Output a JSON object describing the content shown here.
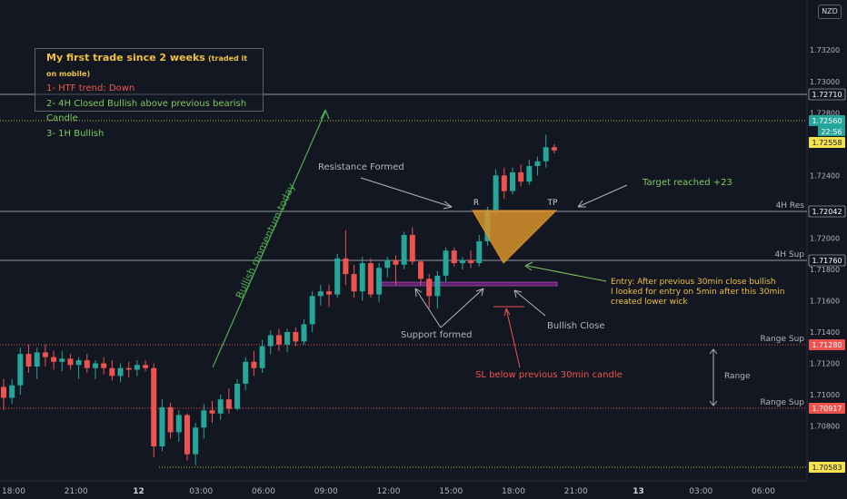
{
  "currency": "NZD",
  "info_box": {
    "title": "My first trade since 2 weeks",
    "subtitle": "(traded it on mobile)",
    "line1": "1- HTF trend: Down",
    "line2": "2- 4H Closed Bullish above previous bearish Candle",
    "line3": "3- 1H Bullish"
  },
  "colors": {
    "background": "#131722",
    "bull": "#26a69a",
    "bear": "#ef5350",
    "text": "#b2b5be",
    "green_note": "#7ecb5e",
    "yellow_note": "#f0c040",
    "red_note": "#f05a4d",
    "triangle": "#d8922a",
    "support_zone": "#9c27b0"
  },
  "chart_data": {
    "type": "candlestick",
    "ylim": [
      1.7045,
      1.7352
    ],
    "x_tick_labels": [
      "18:00",
      "21:00",
      "12",
      "03:00",
      "06:00",
      "09:00",
      "12:00",
      "15:00",
      "18:00",
      "21:00",
      "13",
      "03:00",
      "06:00"
    ],
    "y_tick_labels": [
      "1.73200",
      "1.73000",
      "1.72800",
      "1.72600",
      "1.72400",
      "1.72000",
      "1.71800",
      "1.71600",
      "1.71400",
      "1.71200",
      "1.71000",
      "1.70800"
    ],
    "y_tick_values": [
      1.732,
      1.73,
      1.728,
      1.726,
      1.724,
      1.72,
      1.718,
      1.716,
      1.714,
      1.712,
      1.71,
      1.708
    ],
    "candles": [
      [
        1.7105,
        1.711,
        1.709,
        1.7098
      ],
      [
        1.7098,
        1.711,
        1.7094,
        1.7106
      ],
      [
        1.7106,
        1.713,
        1.71,
        1.7126
      ],
      [
        1.7126,
        1.7132,
        1.7114,
        1.7118
      ],
      [
        1.7118,
        1.713,
        1.711,
        1.7127
      ],
      [
        1.7127,
        1.7132,
        1.7118,
        1.7124
      ],
      [
        1.7124,
        1.7128,
        1.7116,
        1.7121
      ],
      [
        1.7121,
        1.7128,
        1.7115,
        1.7123
      ],
      [
        1.7123,
        1.7126,
        1.7116,
        1.7119
      ],
      [
        1.7119,
        1.7124,
        1.711,
        1.7122
      ],
      [
        1.7122,
        1.7126,
        1.7114,
        1.7117
      ],
      [
        1.7117,
        1.7122,
        1.711,
        1.712
      ],
      [
        1.712,
        1.7124,
        1.7113,
        1.7117
      ],
      [
        1.7117,
        1.7122,
        1.7109,
        1.7112
      ],
      [
        1.7112,
        1.712,
        1.7108,
        1.7117
      ],
      [
        1.7117,
        1.7121,
        1.7111,
        1.7116
      ],
      [
        1.7116,
        1.7122,
        1.7112,
        1.7119
      ],
      [
        1.7119,
        1.7122,
        1.7115,
        1.7117
      ],
      [
        1.7117,
        1.712,
        1.706,
        1.7067
      ],
      [
        1.7067,
        1.7097,
        1.7064,
        1.7092
      ],
      [
        1.7092,
        1.7095,
        1.7072,
        1.7076
      ],
      [
        1.7076,
        1.709,
        1.707,
        1.7087
      ],
      [
        1.7087,
        1.7088,
        1.7058,
        1.7062
      ],
      [
        1.7062,
        1.7082,
        1.7055,
        1.7079
      ],
      [
        1.7079,
        1.7094,
        1.7072,
        1.709
      ],
      [
        1.709,
        1.7096,
        1.7082,
        1.7088
      ],
      [
        1.7088,
        1.71,
        1.7084,
        1.7097
      ],
      [
        1.7097,
        1.7104,
        1.7088,
        1.7091
      ],
      [
        1.7091,
        1.711,
        1.709,
        1.7107
      ],
      [
        1.7107,
        1.7124,
        1.7103,
        1.7121
      ],
      [
        1.7121,
        1.7128,
        1.7112,
        1.7117
      ],
      [
        1.7117,
        1.7135,
        1.7114,
        1.7131
      ],
      [
        1.7131,
        1.7141,
        1.7126,
        1.7138
      ],
      [
        1.7138,
        1.7142,
        1.7128,
        1.7132
      ],
      [
        1.7132,
        1.7142,
        1.7127,
        1.714
      ],
      [
        1.714,
        1.7143,
        1.7131,
        1.7134
      ],
      [
        1.7134,
        1.7148,
        1.7132,
        1.7145
      ],
      [
        1.7145,
        1.7166,
        1.714,
        1.7163
      ],
      [
        1.7163,
        1.717,
        1.7157,
        1.7166
      ],
      [
        1.7166,
        1.717,
        1.7156,
        1.7164
      ],
      [
        1.7164,
        1.719,
        1.7162,
        1.7187
      ],
      [
        1.7187,
        1.7205,
        1.717,
        1.7177
      ],
      [
        1.7177,
        1.7183,
        1.7162,
        1.7166
      ],
      [
        1.7166,
        1.7188,
        1.716,
        1.7184
      ],
      [
        1.7184,
        1.7187,
        1.7162,
        1.7164
      ],
      [
        1.7164,
        1.7184,
        1.7159,
        1.7181
      ],
      [
        1.7181,
        1.7188,
        1.7175,
        1.7186
      ],
      [
        1.7186,
        1.7189,
        1.717,
        1.7183
      ],
      [
        1.7183,
        1.7204,
        1.718,
        1.7202
      ],
      [
        1.7202,
        1.7207,
        1.7183,
        1.7185
      ],
      [
        1.7185,
        1.7186,
        1.717,
        1.7174
      ],
      [
        1.7174,
        1.7177,
        1.7155,
        1.7163
      ],
      [
        1.7163,
        1.7179,
        1.7155,
        1.7176
      ],
      [
        1.7176,
        1.7194,
        1.7172,
        1.7192
      ],
      [
        1.7192,
        1.7194,
        1.7182,
        1.7184
      ],
      [
        1.7184,
        1.7188,
        1.718,
        1.7186
      ],
      [
        1.7186,
        1.7192,
        1.7181,
        1.7184
      ],
      [
        1.7184,
        1.7202,
        1.7182,
        1.7198
      ],
      [
        1.7198,
        1.722,
        1.7195,
        1.7218
      ],
      [
        1.7218,
        1.7244,
        1.7214,
        1.724
      ],
      [
        1.724,
        1.7245,
        1.7225,
        1.723
      ],
      [
        1.723,
        1.7245,
        1.7228,
        1.7242
      ],
      [
        1.7242,
        1.7247,
        1.7233,
        1.7236
      ],
      [
        1.7236,
        1.725,
        1.7234,
        1.7246
      ],
      [
        1.7246,
        1.7252,
        1.724,
        1.7249
      ],
      [
        1.7249,
        1.7266,
        1.7245,
        1.7258
      ],
      [
        1.7258,
        1.726,
        1.7254,
        1.7256
      ]
    ]
  },
  "price_tags": {
    "tag_1": "1.72710",
    "tag_2": "1.72560",
    "countdown": "22:56",
    "tag_3": "1.72558",
    "tag_4": "1.72042",
    "tag_5": "1.71760",
    "tag_6": "1.71280",
    "tag_7": "1.70917",
    "tag_8": "1.70583"
  },
  "level_labels": {
    "res_4h": "4H Res",
    "sup_4h": "4H Sup",
    "range_sup_top": "Range Sup",
    "range_sup_bottom": "Range Sup",
    "range": "Range"
  },
  "annotations": {
    "bullish_momentum": "Bullish momentum today",
    "resistance_formed": "Resistance Formed",
    "r_label": "R",
    "tp_label": "TP",
    "target_reached": "Target reached +23",
    "entry_line1": "Entry: After previous 30min close bullish",
    "entry_line2": "I looked for entry on 5min after this 30min",
    "entry_line3": "created lower wick",
    "support_formed": "Support formed",
    "bullish_close": "Bullish Close",
    "sl_note": "SL below previous 30min candle"
  }
}
